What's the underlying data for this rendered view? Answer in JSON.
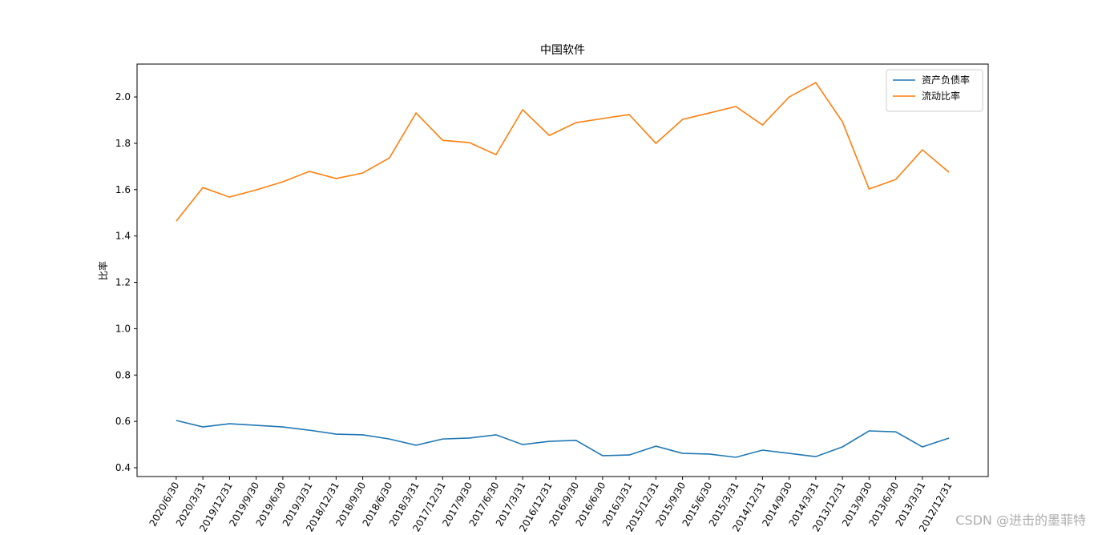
{
  "chart_data": {
    "type": "line",
    "title": "中国软件",
    "ylabel": "比率",
    "categories": [
      "2020/6/30",
      "2020/3/31",
      "2019/12/31",
      "2019/9/30",
      "2019/6/30",
      "2019/3/31",
      "2018/12/31",
      "2018/9/30",
      "2018/6/30",
      "2018/3/31",
      "2017/12/31",
      "2017/9/30",
      "2017/6/30",
      "2017/3/31",
      "2016/12/31",
      "2016/9/30",
      "2016/6/30",
      "2016/3/31",
      "2015/12/31",
      "2015/9/30",
      "2015/6/30",
      "2015/3/31",
      "2014/12/31",
      "2014/9/30",
      "2014/3/31",
      "2013/12/31",
      "2013/9/30",
      "2013/6/30",
      "2013/3/31",
      "2012/12/31"
    ],
    "series": [
      {
        "name": "资产负债率",
        "color": "#1f77b4",
        "values": [
          0.604,
          0.576,
          0.59,
          0.583,
          0.576,
          0.562,
          0.545,
          0.542,
          0.524,
          0.497,
          0.524,
          0.528,
          0.542,
          0.5,
          0.514,
          0.518,
          0.452,
          0.455,
          0.493,
          0.462,
          0.459,
          0.445,
          0.476,
          0.462,
          0.448,
          0.49,
          0.559,
          0.555,
          0.49,
          0.528
        ]
      },
      {
        "name": "流动比率",
        "color": "#ff7f0e",
        "values": [
          1.464,
          1.609,
          1.568,
          1.599,
          1.634,
          1.679,
          1.648,
          1.672,
          1.737,
          1.931,
          1.813,
          1.803,
          1.751,
          1.945,
          1.834,
          1.889,
          1.907,
          1.924,
          1.8,
          1.903,
          1.931,
          1.959,
          1.879,
          2.0,
          2.062,
          1.893,
          1.603,
          1.644,
          1.772,
          1.675
        ]
      }
    ],
    "ylim": [
      0.362,
      2.142
    ],
    "yticks": [
      0.4,
      0.6,
      0.8,
      {
        "value": 1,
        "label": "1.0"
      },
      1.2,
      1.4,
      1.6,
      1.8,
      {
        "value": 2,
        "label": "2.0"
      }
    ],
    "legend": "upper right",
    "watermark": "CSDN @进击的墨菲特"
  }
}
